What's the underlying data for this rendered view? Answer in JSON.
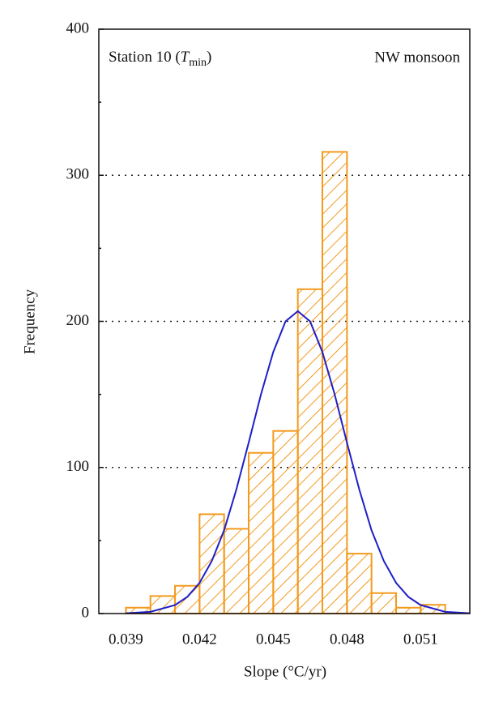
{
  "chart_data": {
    "type": "histogram",
    "annotation_left": [
      "Station 10 (",
      "T",
      "min",
      ")"
    ],
    "annotation_right": "NW monsoon",
    "xlabel": "Slope (°C/yr)",
    "ylabel": "Frequency",
    "bins": [
      0.039,
      0.04,
      0.041,
      0.042,
      0.043,
      0.044,
      0.045,
      0.046,
      0.047,
      0.048,
      0.049,
      0.05,
      0.051,
      0.052
    ],
    "values": [
      4,
      12,
      19,
      68,
      58,
      110,
      125,
      222,
      316,
      41,
      14,
      4,
      6
    ],
    "color": "#f39a1e",
    "curve": {
      "color": "#1f1fc8",
      "x": [
        0.039,
        0.04,
        0.041,
        0.0415,
        0.042,
        0.0425,
        0.043,
        0.0435,
        0.044,
        0.0445,
        0.045,
        0.0455,
        0.046,
        0.0465,
        0.047,
        0.0475,
        0.048,
        0.0485,
        0.049,
        0.0495,
        0.05,
        0.0505,
        0.051,
        0.052,
        0.053
      ],
      "values": [
        0.2,
        1.2,
        5.8,
        11.4,
        21,
        36,
        57,
        85,
        117,
        150,
        179,
        200,
        207,
        200,
        179,
        150,
        117,
        85,
        57,
        36,
        21,
        11.4,
        5.8,
        1.2,
        0.2
      ]
    },
    "xlim": [
      0.0379,
      0.053
    ],
    "ylim": [
      0,
      400
    ],
    "xticks": [
      0.039,
      0.042,
      0.045,
      0.048,
      0.051
    ],
    "yticks": [
      0,
      100,
      200,
      300,
      400
    ],
    "yminor_ticks": [
      50,
      150,
      250,
      350
    ],
    "grid": true
  }
}
